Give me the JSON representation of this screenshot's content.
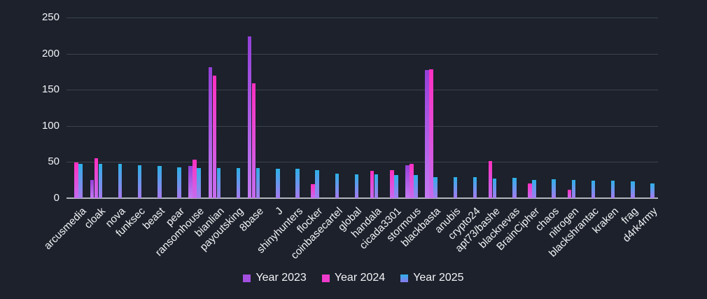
{
  "chart_data": {
    "type": "bar",
    "title": "",
    "xlabel": "",
    "ylabel": "",
    "grid": true,
    "legend_position": "bottom",
    "ylim": [
      0,
      250
    ],
    "yticks": [
      0,
      50,
      100,
      150,
      200,
      250
    ],
    "categories": [
      "arcusmedia",
      "cloak",
      "nova",
      "funksec",
      "beast",
      "pear",
      "ransomhouse",
      "bianlian",
      "payoutsking",
      "8base",
      "J",
      "shinyhunters",
      "flocker",
      "coinbasecartel",
      "global",
      "handala",
      "cicada3301",
      "stormous",
      "blackbasta",
      "anubis",
      "crypto24",
      "apt73/bashe",
      "blacknevas",
      "BrainCipher",
      "chaos",
      "nitrogen",
      "blackshrantac",
      "kraken",
      "frag",
      "d4rk4rmy"
    ],
    "series": [
      {
        "name": "Year 2023",
        "color_top": "#9440d8",
        "color_bottom": "#c47af2",
        "legend_color_top": "#a34fe0",
        "legend_color_bottom": "#a34fe0",
        "values": [
          0,
          25,
          0,
          0,
          0,
          0,
          45,
          181,
          0,
          224,
          0,
          0,
          0,
          0,
          0,
          0,
          0,
          46,
          177,
          0,
          0,
          0,
          0,
          0,
          0,
          0,
          0,
          0,
          0,
          0
        ]
      },
      {
        "name": "Year 2024",
        "color_top": "#ff2fc0",
        "color_bottom": "#c46cf0",
        "legend_color_top": "#ee3bcc",
        "legend_color_bottom": "#ee3bcc",
        "values": [
          49,
          55,
          0,
          0,
          0,
          0,
          53,
          170,
          0,
          159,
          0,
          0,
          19,
          0,
          0,
          38,
          39,
          47,
          178,
          0,
          0,
          51,
          0,
          20,
          0,
          12,
          0,
          0,
          0,
          0
        ]
      },
      {
        "name": "Year 2025",
        "color_top": "#2cb1e8",
        "color_bottom": "#a77af0",
        "legend_color_top": "#2cb1e8",
        "legend_color_bottom": "#8a78ee",
        "values": [
          47,
          47,
          47,
          46,
          45,
          43,
          42,
          42,
          42,
          42,
          41,
          41,
          39,
          34,
          33,
          33,
          32,
          32,
          29,
          29,
          29,
          27,
          28,
          25,
          26,
          25,
          24,
          24,
          23,
          20
        ]
      }
    ]
  },
  "colors": {
    "background": "#1c212c",
    "gridline": "#3d434d",
    "axis_line": "#b2b6bc",
    "text": "#f2f3f5"
  }
}
